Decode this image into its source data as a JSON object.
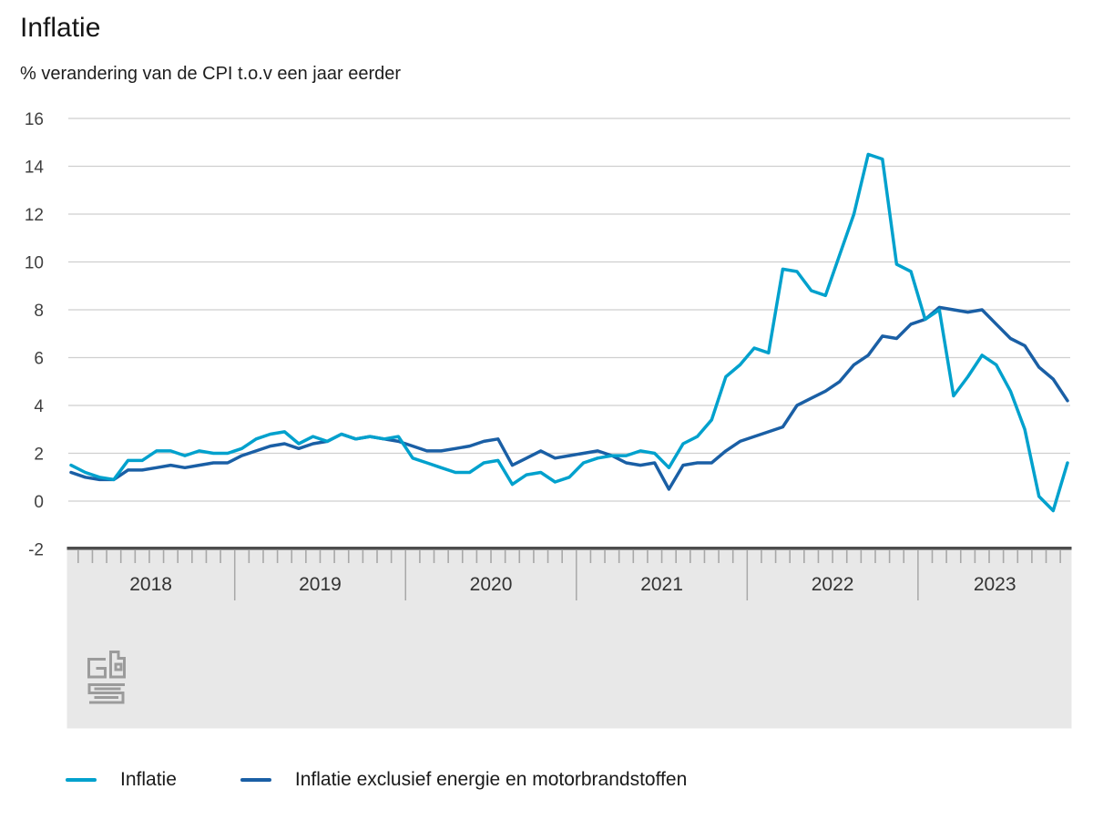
{
  "chart_data": {
    "type": "line",
    "title": "Inflatie",
    "subtitle": "% verandering van de CPI t.o.v een jaar eerder",
    "x_unit": "month",
    "x_start": "2018-01",
    "x_end": "2023-11",
    "x_year_labels": [
      "2018",
      "2019",
      "2020",
      "2021",
      "2022",
      "2023"
    ],
    "y_ticks": [
      16,
      14,
      12,
      10,
      8,
      6,
      4,
      2,
      0,
      -2
    ],
    "ylim": [
      -2,
      16
    ],
    "grid": "horizontal",
    "legend_position": "bottom",
    "series": [
      {
        "name": "Inflatie",
        "color": "#00a1cd",
        "values": [
          1.5,
          1.2,
          1.0,
          0.9,
          1.7,
          1.7,
          2.1,
          2.1,
          1.9,
          2.1,
          2.0,
          2.0,
          2.2,
          2.6,
          2.8,
          2.9,
          2.4,
          2.7,
          2.5,
          2.8,
          2.6,
          2.7,
          2.6,
          2.7,
          1.8,
          1.6,
          1.4,
          1.2,
          1.2,
          1.6,
          1.7,
          0.7,
          1.1,
          1.2,
          0.8,
          1.0,
          1.6,
          1.8,
          1.9,
          1.9,
          2.1,
          2.0,
          1.4,
          2.4,
          2.7,
          3.4,
          5.2,
          5.7,
          6.4,
          6.2,
          9.7,
          9.6,
          8.8,
          8.6,
          10.3,
          12.0,
          14.5,
          14.3,
          9.9,
          9.6,
          7.6,
          8.0,
          4.4,
          5.2,
          6.1,
          5.7,
          4.6,
          3.0,
          0.2,
          -0.4,
          1.6
        ]
      },
      {
        "name": "Inflatie exclusief energie en motorbrandstoffen",
        "color": "#1a5fa5",
        "values": [
          1.2,
          1.0,
          0.9,
          0.9,
          1.3,
          1.3,
          1.4,
          1.5,
          1.4,
          1.5,
          1.6,
          1.6,
          1.9,
          2.1,
          2.3,
          2.4,
          2.2,
          2.4,
          2.5,
          2.8,
          2.6,
          2.7,
          2.6,
          2.5,
          2.3,
          2.1,
          2.1,
          2.2,
          2.3,
          2.5,
          2.6,
          1.5,
          1.8,
          2.1,
          1.8,
          1.9,
          2.0,
          2.1,
          1.9,
          1.6,
          1.5,
          1.6,
          0.5,
          1.5,
          1.6,
          1.6,
          2.1,
          2.5,
          2.7,
          2.9,
          3.1,
          4.0,
          4.3,
          4.6,
          5.0,
          5.7,
          6.1,
          6.9,
          6.8,
          7.4,
          7.6,
          8.1,
          8.0,
          7.9,
          8.0,
          7.4,
          6.8,
          6.5,
          5.6,
          5.1,
          4.2
        ]
      }
    ],
    "colors": {
      "gridline": "#cfcfcf",
      "axis_line": "#4d4d4d",
      "axis_band": "#e8e8e8",
      "tick": "#a8a8a8",
      "year_label": "#333333",
      "y_label": "#404040",
      "logo": "#9b9b9b"
    }
  }
}
